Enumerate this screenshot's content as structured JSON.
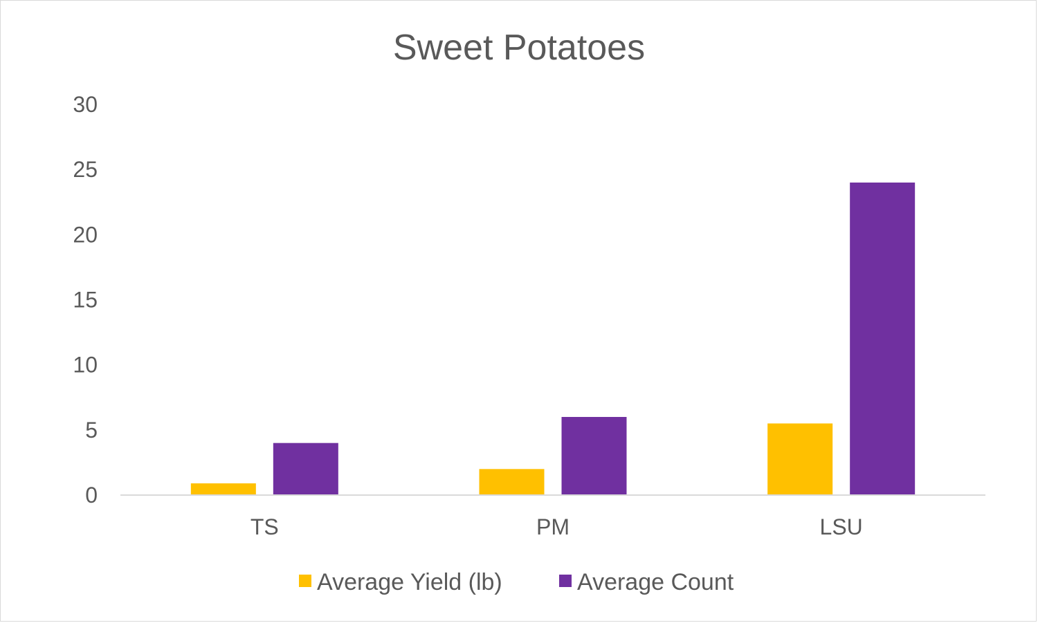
{
  "chart_data": {
    "type": "bar",
    "title": "Sweet Potatoes",
    "categories": [
      "TS",
      "PM",
      "LSU"
    ],
    "series": [
      {
        "name": "Average Yield (lb)",
        "values": [
          0.9,
          2,
          5.5
        ],
        "color": "#FFC000"
      },
      {
        "name": "Average Count",
        "values": [
          4,
          6,
          24
        ],
        "color": "#7030A0"
      }
    ],
    "ylim": [
      0,
      30
    ],
    "yticks": [
      0,
      5,
      10,
      15,
      20,
      25,
      30
    ],
    "grid": false,
    "legend_position": "bottom"
  }
}
